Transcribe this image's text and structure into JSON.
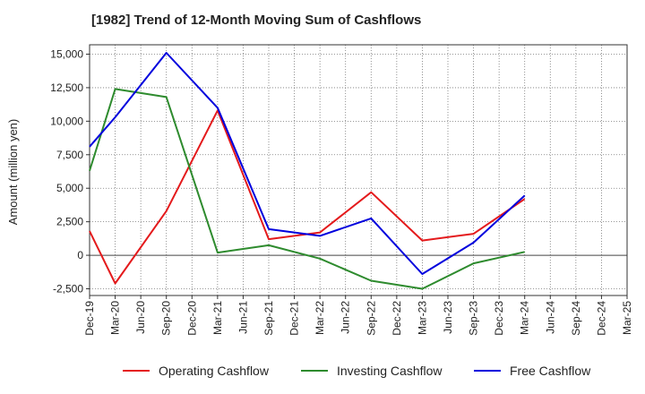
{
  "chart_data": {
    "type": "line",
    "title": "[1982]  Trend of 12-Month Moving Sum of Cashflows",
    "xlabel": "",
    "ylabel": "Amount (million yen)",
    "categories": [
      "Dec-19",
      "Mar-20",
      "Jun-20",
      "Sep-20",
      "Dec-20",
      "Mar-21",
      "Jun-21",
      "Sep-21",
      "Dec-21",
      "Mar-22",
      "Jun-22",
      "Sep-22",
      "Dec-22",
      "Mar-23",
      "Jun-23",
      "Sep-23",
      "Dec-23",
      "Mar-24",
      "Jun-24",
      "Sep-24",
      "Dec-24",
      "Mar-25"
    ],
    "ylim": [
      -3000,
      15700
    ],
    "yticks": [
      -2500,
      0,
      2500,
      5000,
      7500,
      10000,
      12500,
      15000
    ],
    "ytick_labels": [
      "-2,500",
      "0",
      "2,500",
      "5,000",
      "7,500",
      "10,000",
      "12,500",
      "15,000"
    ],
    "grid": true,
    "legend_position": "bottom",
    "series": [
      {
        "name": "Operating Cashflow",
        "color": "#e41a1c",
        "values": [
          1800,
          -2100,
          null,
          3300,
          null,
          10800,
          null,
          1200,
          null,
          1700,
          null,
          4700,
          null,
          1100,
          null,
          1600,
          null,
          4200,
          null,
          null,
          null,
          null
        ]
      },
      {
        "name": "Investing Cashflow",
        "color": "#2e8b2e",
        "values": [
          6300,
          12400,
          null,
          11800,
          null,
          200,
          null,
          750,
          null,
          -250,
          null,
          -1900,
          null,
          -2500,
          null,
          -600,
          null,
          250,
          null,
          null,
          null,
          null
        ]
      },
      {
        "name": "Free Cashflow",
        "color": "#0000dd",
        "values": [
          8100,
          10300,
          null,
          15100,
          null,
          11000,
          null,
          1950,
          null,
          1450,
          null,
          2750,
          null,
          -1400,
          null,
          950,
          null,
          4450,
          null,
          null,
          null,
          null
        ]
      }
    ]
  }
}
